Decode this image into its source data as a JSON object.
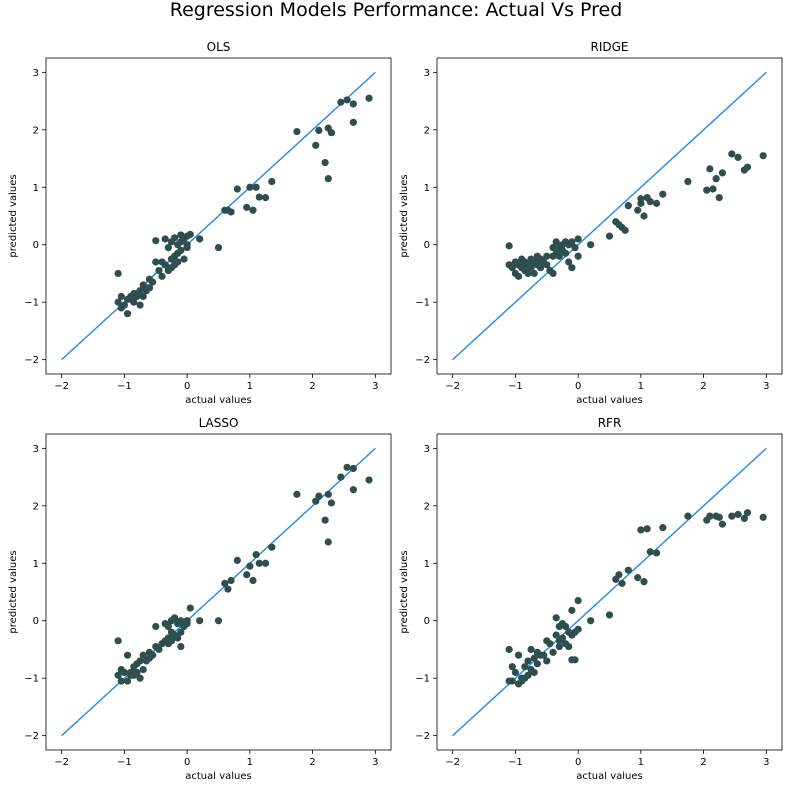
{
  "suptitle": "Regression Models Performance: Actual Vs Pred",
  "colors": {
    "point": "#2f4f4f",
    "line": "#1e88e5",
    "axes": "#000000",
    "background": "#ffffff"
  },
  "chart_data": [
    {
      "type": "scatter",
      "title": "OLS",
      "xlabel": "actual values",
      "ylabel": "predicted values",
      "xlim": [
        -2.25,
        3.25
      ],
      "ylim": [
        -2.25,
        3.25
      ],
      "xticks": [
        -2,
        -1,
        0,
        1,
        2,
        3
      ],
      "yticks": [
        -2,
        -1,
        0,
        1,
        2,
        3
      ],
      "reference_line": {
        "x": [
          -2,
          3
        ],
        "y": [
          -2,
          3
        ]
      },
      "points": [
        [
          -1.1,
          -0.5
        ],
        [
          -1.1,
          -1.0
        ],
        [
          -1.05,
          -0.9
        ],
        [
          -1.05,
          -1.1
        ],
        [
          -1.0,
          -1.05
        ],
        [
          -0.95,
          -0.95
        ],
        [
          -0.95,
          -1.2
        ],
        [
          -0.9,
          -0.9
        ],
        [
          -0.9,
          -0.95
        ],
        [
          -0.85,
          -0.85
        ],
        [
          -0.85,
          -1.0
        ],
        [
          -0.8,
          -0.85
        ],
        [
          -0.8,
          -0.9
        ],
        [
          -0.75,
          -0.8
        ],
        [
          -0.75,
          -1.05
        ],
        [
          -0.7,
          -0.7
        ],
        [
          -0.7,
          -0.9
        ],
        [
          -0.65,
          -0.75
        ],
        [
          -0.65,
          -0.8
        ],
        [
          -0.6,
          -0.6
        ],
        [
          -0.6,
          -0.75
        ],
        [
          -0.55,
          -0.65
        ],
        [
          -0.5,
          0.07
        ],
        [
          -0.5,
          -0.3
        ],
        [
          -0.45,
          -0.45
        ],
        [
          -0.4,
          -0.3
        ],
        [
          -0.4,
          -0.55
        ],
        [
          -0.35,
          0.1
        ],
        [
          -0.35,
          -0.35
        ],
        [
          -0.3,
          -0.05
        ],
        [
          -0.3,
          -0.4
        ],
        [
          -0.3,
          -0.45
        ],
        [
          -0.25,
          0.05
        ],
        [
          -0.25,
          -0.25
        ],
        [
          -0.25,
          -0.4
        ],
        [
          -0.2,
          0.12
        ],
        [
          -0.2,
          -0.2
        ],
        [
          -0.2,
          -0.35
        ],
        [
          -0.15,
          0.0
        ],
        [
          -0.15,
          -0.15
        ],
        [
          -0.15,
          -0.3
        ],
        [
          -0.1,
          0.05
        ],
        [
          -0.1,
          -0.1
        ],
        [
          -0.1,
          0.17
        ],
        [
          -0.05,
          0.1
        ],
        [
          -0.05,
          -0.25
        ],
        [
          0.0,
          0.15
        ],
        [
          0.0,
          -0.05
        ],
        [
          0.0,
          0.0
        ],
        [
          0.05,
          0.18
        ],
        [
          0.2,
          0.1
        ],
        [
          0.5,
          -0.05
        ],
        [
          0.6,
          0.6
        ],
        [
          0.65,
          0.6
        ],
        [
          0.7,
          0.57
        ],
        [
          0.8,
          0.97
        ],
        [
          0.95,
          0.65
        ],
        [
          1.0,
          1.0
        ],
        [
          1.05,
          0.6
        ],
        [
          1.1,
          1.0
        ],
        [
          1.15,
          0.83
        ],
        [
          1.25,
          0.82
        ],
        [
          1.35,
          1.1
        ],
        [
          1.75,
          1.97
        ],
        [
          2.05,
          1.73
        ],
        [
          2.1,
          1.99
        ],
        [
          2.2,
          1.43
        ],
        [
          2.25,
          2.03
        ],
        [
          2.25,
          1.15
        ],
        [
          2.3,
          1.95
        ],
        [
          2.45,
          2.48
        ],
        [
          2.55,
          2.52
        ],
        [
          2.65,
          2.45
        ],
        [
          2.65,
          2.13
        ],
        [
          2.9,
          2.55
        ]
      ]
    },
    {
      "type": "scatter",
      "title": "RIDGE",
      "xlabel": "actual values",
      "ylabel": "predicted values",
      "xlim": [
        -2.25,
        3.25
      ],
      "ylim": [
        -2.25,
        3.25
      ],
      "xticks": [
        -2,
        -1,
        0,
        1,
        2,
        3
      ],
      "yticks": [
        -2,
        -1,
        0,
        1,
        2,
        3
      ],
      "reference_line": {
        "x": [
          -2,
          3
        ],
        "y": [
          -2,
          3
        ]
      },
      "points": [
        [
          -1.1,
          -0.02
        ],
        [
          -1.1,
          -0.35
        ],
        [
          -1.05,
          -0.4
        ],
        [
          -1.0,
          -0.3
        ],
        [
          -1.0,
          -0.5
        ],
        [
          -0.95,
          -0.35
        ],
        [
          -0.95,
          -0.55
        ],
        [
          -0.9,
          -0.25
        ],
        [
          -0.9,
          -0.4
        ],
        [
          -0.85,
          -0.3
        ],
        [
          -0.85,
          -0.45
        ],
        [
          -0.8,
          -0.35
        ],
        [
          -0.8,
          -0.5
        ],
        [
          -0.75,
          -0.25
        ],
        [
          -0.75,
          -0.4
        ],
        [
          -0.7,
          -0.3
        ],
        [
          -0.7,
          -0.5
        ],
        [
          -0.65,
          -0.2
        ],
        [
          -0.65,
          -0.35
        ],
        [
          -0.6,
          -0.25
        ],
        [
          -0.6,
          -0.4
        ],
        [
          -0.55,
          -0.3
        ],
        [
          -0.5,
          -0.2
        ],
        [
          -0.5,
          -0.35
        ],
        [
          -0.45,
          -0.45
        ],
        [
          -0.4,
          -0.05
        ],
        [
          -0.4,
          -0.2
        ],
        [
          -0.4,
          -0.5
        ],
        [
          -0.35,
          0.05
        ],
        [
          -0.35,
          -0.15
        ],
        [
          -0.3,
          -0.05
        ],
        [
          -0.3,
          -0.2
        ],
        [
          -0.25,
          0.0
        ],
        [
          -0.25,
          -0.1
        ],
        [
          -0.2,
          0.05
        ],
        [
          -0.2,
          -0.15
        ],
        [
          -0.15,
          0.0
        ],
        [
          -0.15,
          -0.3
        ],
        [
          -0.1,
          0.05
        ],
        [
          -0.1,
          -0.4
        ],
        [
          -0.05,
          -0.05
        ],
        [
          0.0,
          0.1
        ],
        [
          0.0,
          -0.2
        ],
        [
          0.2,
          0.0
        ],
        [
          0.5,
          0.15
        ],
        [
          0.6,
          0.4
        ],
        [
          0.65,
          0.35
        ],
        [
          0.7,
          0.3
        ],
        [
          0.75,
          0.25
        ],
        [
          0.8,
          0.68
        ],
        [
          0.95,
          0.6
        ],
        [
          1.0,
          0.8
        ],
        [
          1.0,
          0.72
        ],
        [
          1.05,
          0.5
        ],
        [
          1.1,
          0.82
        ],
        [
          1.15,
          0.75
        ],
        [
          1.25,
          0.72
        ],
        [
          1.35,
          0.88
        ],
        [
          1.75,
          1.1
        ],
        [
          2.05,
          0.95
        ],
        [
          2.1,
          1.32
        ],
        [
          2.15,
          0.97
        ],
        [
          2.2,
          1.15
        ],
        [
          2.25,
          0.82
        ],
        [
          2.3,
          1.25
        ],
        [
          2.45,
          1.58
        ],
        [
          2.55,
          1.52
        ],
        [
          2.65,
          1.3
        ],
        [
          2.7,
          1.35
        ],
        [
          2.95,
          1.55
        ]
      ]
    },
    {
      "type": "scatter",
      "title": "LASSO",
      "xlabel": "actual values",
      "ylabel": "predicted values",
      "xlim": [
        -2.25,
        3.25
      ],
      "ylim": [
        -2.25,
        3.25
      ],
      "xticks": [
        -2,
        -1,
        0,
        1,
        2,
        3
      ],
      "yticks": [
        -2,
        -1,
        0,
        1,
        2,
        3
      ],
      "reference_line": {
        "x": [
          -2,
          3
        ],
        "y": [
          -2,
          3
        ]
      },
      "points": [
        [
          -1.1,
          -0.35
        ],
        [
          -1.1,
          -0.95
        ],
        [
          -1.05,
          -0.85
        ],
        [
          -1.05,
          -1.05
        ],
        [
          -1.0,
          -0.9
        ],
        [
          -0.95,
          -0.6
        ],
        [
          -0.95,
          -1.05
        ],
        [
          -0.9,
          -0.9
        ],
        [
          -0.9,
          -0.95
        ],
        [
          -0.85,
          -0.8
        ],
        [
          -0.85,
          -0.95
        ],
        [
          -0.8,
          -0.75
        ],
        [
          -0.8,
          -0.9
        ],
        [
          -0.75,
          -0.7
        ],
        [
          -0.75,
          -1.0
        ],
        [
          -0.7,
          -0.6
        ],
        [
          -0.7,
          -0.85
        ],
        [
          -0.65,
          -0.7
        ],
        [
          -0.6,
          -0.55
        ],
        [
          -0.6,
          -0.65
        ],
        [
          -0.55,
          -0.6
        ],
        [
          -0.5,
          -0.1
        ],
        [
          -0.5,
          -0.45
        ],
        [
          -0.45,
          -0.5
        ],
        [
          -0.4,
          -0.4
        ],
        [
          -0.35,
          -0.05
        ],
        [
          -0.35,
          -0.35
        ],
        [
          -0.3,
          -0.1
        ],
        [
          -0.3,
          -0.3
        ],
        [
          -0.3,
          -0.4
        ],
        [
          -0.25,
          0.0
        ],
        [
          -0.25,
          -0.2
        ],
        [
          -0.25,
          -0.35
        ],
        [
          -0.2,
          0.05
        ],
        [
          -0.2,
          -0.25
        ],
        [
          -0.15,
          -0.05
        ],
        [
          -0.15,
          -0.3
        ],
        [
          -0.1,
          0.0
        ],
        [
          -0.1,
          -0.2
        ],
        [
          -0.1,
          -0.45
        ],
        [
          -0.05,
          -0.1
        ],
        [
          0.0,
          0.0
        ],
        [
          0.0,
          -0.05
        ],
        [
          0.05,
          0.22
        ],
        [
          0.2,
          0.0
        ],
        [
          0.5,
          0.0
        ],
        [
          0.6,
          0.65
        ],
        [
          0.65,
          0.55
        ],
        [
          0.7,
          0.7
        ],
        [
          0.8,
          1.05
        ],
        [
          0.95,
          0.8
        ],
        [
          1.0,
          0.95
        ],
        [
          1.05,
          0.7
        ],
        [
          1.1,
          1.15
        ],
        [
          1.15,
          1.0
        ],
        [
          1.25,
          1.0
        ],
        [
          1.35,
          1.28
        ],
        [
          1.75,
          2.2
        ],
        [
          2.05,
          2.08
        ],
        [
          2.1,
          2.17
        ],
        [
          2.2,
          1.75
        ],
        [
          2.25,
          2.2
        ],
        [
          2.25,
          1.37
        ],
        [
          2.3,
          2.05
        ],
        [
          2.45,
          2.5
        ],
        [
          2.55,
          2.67
        ],
        [
          2.65,
          2.65
        ],
        [
          2.65,
          2.28
        ],
        [
          2.9,
          2.45
        ]
      ]
    },
    {
      "type": "scatter",
      "title": "RFR",
      "xlabel": "actual values",
      "ylabel": "predicted values",
      "xlim": [
        -2.25,
        3.25
      ],
      "ylim": [
        -2.25,
        3.25
      ],
      "xticks": [
        -2,
        -1,
        0,
        1,
        2,
        3
      ],
      "yticks": [
        -2,
        -1,
        0,
        1,
        2,
        3
      ],
      "reference_line": {
        "x": [
          -2,
          3
        ],
        "y": [
          -2,
          3
        ]
      },
      "points": [
        [
          -1.1,
          -0.5
        ],
        [
          -1.1,
          -1.05
        ],
        [
          -1.05,
          -0.8
        ],
        [
          -1.05,
          -1.05
        ],
        [
          -1.0,
          -0.9
        ],
        [
          -0.95,
          -0.6
        ],
        [
          -0.95,
          -1.1
        ],
        [
          -0.9,
          -1.0
        ],
        [
          -0.9,
          -1.05
        ],
        [
          -0.85,
          -0.8
        ],
        [
          -0.85,
          -1.0
        ],
        [
          -0.8,
          -0.7
        ],
        [
          -0.8,
          -0.95
        ],
        [
          -0.75,
          -0.5
        ],
        [
          -0.75,
          -0.85
        ],
        [
          -0.7,
          -0.65
        ],
        [
          -0.7,
          -0.9
        ],
        [
          -0.65,
          -0.55
        ],
        [
          -0.65,
          -0.75
        ],
        [
          -0.6,
          -0.6
        ],
        [
          -0.55,
          -0.6
        ],
        [
          -0.5,
          -0.35
        ],
        [
          -0.5,
          -0.7
        ],
        [
          -0.45,
          -0.4
        ],
        [
          -0.4,
          -0.55
        ],
        [
          -0.35,
          0.05
        ],
        [
          -0.35,
          -0.25
        ],
        [
          -0.3,
          -0.1
        ],
        [
          -0.3,
          -0.35
        ],
        [
          -0.3,
          -0.45
        ],
        [
          -0.25,
          -0.05
        ],
        [
          -0.25,
          -0.3
        ],
        [
          -0.2,
          -0.1
        ],
        [
          -0.2,
          -0.4
        ],
        [
          -0.15,
          -0.2
        ],
        [
          -0.15,
          -0.45
        ],
        [
          -0.1,
          0.18
        ],
        [
          -0.1,
          -0.25
        ],
        [
          -0.1,
          -0.68
        ],
        [
          -0.05,
          -0.2
        ],
        [
          -0.05,
          -0.68
        ],
        [
          0.0,
          0.35
        ],
        [
          0.0,
          -0.15
        ],
        [
          0.2,
          0.0
        ],
        [
          0.5,
          0.1
        ],
        [
          0.6,
          0.72
        ],
        [
          0.65,
          0.8
        ],
        [
          0.7,
          0.65
        ],
        [
          0.8,
          0.88
        ],
        [
          0.95,
          0.75
        ],
        [
          1.0,
          1.58
        ],
        [
          1.05,
          0.68
        ],
        [
          1.1,
          1.6
        ],
        [
          1.15,
          1.2
        ],
        [
          1.25,
          1.18
        ],
        [
          1.35,
          1.62
        ],
        [
          1.75,
          1.82
        ],
        [
          2.05,
          1.75
        ],
        [
          2.1,
          1.82
        ],
        [
          2.2,
          1.82
        ],
        [
          2.25,
          1.8
        ],
        [
          2.3,
          1.68
        ],
        [
          2.45,
          1.82
        ],
        [
          2.55,
          1.85
        ],
        [
          2.65,
          1.78
        ],
        [
          2.7,
          1.88
        ],
        [
          2.95,
          1.8
        ]
      ]
    }
  ]
}
